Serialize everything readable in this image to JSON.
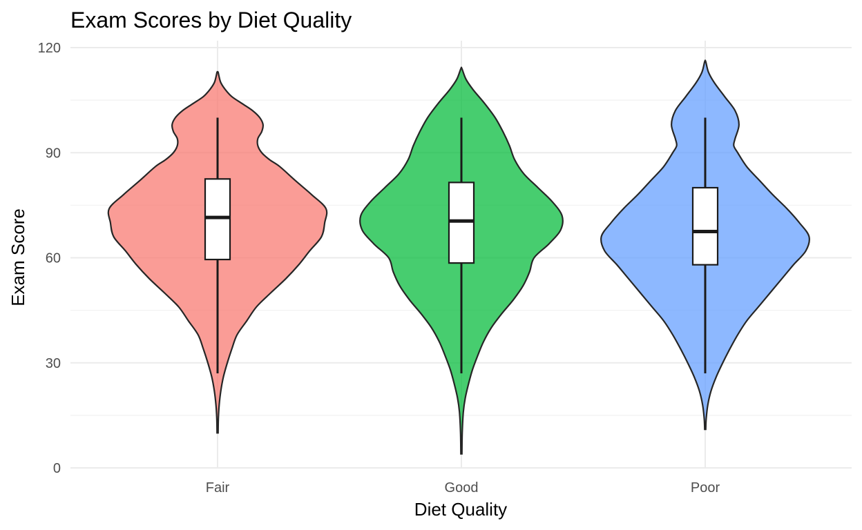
{
  "chart_data": {
    "type": "violin",
    "title": "Exam Scores by Diet Quality",
    "xlabel": "Diet Quality",
    "ylabel": "Exam Score",
    "ylim": [
      0,
      120
    ],
    "y_ticks": [
      0,
      30,
      60,
      90,
      120
    ],
    "categories": [
      "Fair",
      "Good",
      "Poor"
    ],
    "grid": true,
    "legend": "none",
    "series": [
      {
        "category": "Fair",
        "color": "#F8766D",
        "range": [
          10,
          113
        ],
        "box": {
          "whisker_low": 27,
          "q1": 59.5,
          "median": 71.5,
          "q3": 82.5,
          "whisker_high": 100
        },
        "density": [
          [
            10,
            0.8
          ],
          [
            14,
            1.2
          ],
          [
            18,
            2.5
          ],
          [
            22,
            5
          ],
          [
            26,
            9
          ],
          [
            30,
            15
          ],
          [
            34,
            22
          ],
          [
            38,
            30
          ],
          [
            42,
            45
          ],
          [
            46,
            60
          ],
          [
            50,
            82
          ],
          [
            54,
            105
          ],
          [
            58,
            125
          ],
          [
            62,
            142
          ],
          [
            66,
            160
          ],
          [
            70,
            165
          ],
          [
            74,
            167
          ],
          [
            78,
            145
          ],
          [
            82,
            120
          ],
          [
            86,
            96
          ],
          [
            88,
            80
          ],
          [
            90,
            68
          ],
          [
            92,
            62
          ],
          [
            94,
            62
          ],
          [
            96,
            68
          ],
          [
            98,
            70
          ],
          [
            100,
            65
          ],
          [
            102,
            54
          ],
          [
            104,
            38
          ],
          [
            106,
            22
          ],
          [
            108,
            12
          ],
          [
            110,
            5
          ],
          [
            112,
            2
          ],
          [
            113,
            0.8
          ]
        ]
      },
      {
        "category": "Good",
        "color": "#00BA38",
        "range": [
          4,
          114
        ],
        "box": {
          "whisker_low": 27,
          "q1": 58.5,
          "median": 70.5,
          "q3": 81.5,
          "whisker_high": 100
        },
        "density": [
          [
            4,
            0.8
          ],
          [
            10,
            1.3
          ],
          [
            16,
            3
          ],
          [
            20,
            6
          ],
          [
            24,
            11
          ],
          [
            28,
            17
          ],
          [
            32,
            25
          ],
          [
            36,
            34
          ],
          [
            40,
            46
          ],
          [
            44,
            62
          ],
          [
            48,
            80
          ],
          [
            52,
            95
          ],
          [
            56,
            105
          ],
          [
            60,
            112
          ],
          [
            64,
            135
          ],
          [
            68,
            153
          ],
          [
            72,
            155
          ],
          [
            76,
            140
          ],
          [
            80,
            118
          ],
          [
            84,
            96
          ],
          [
            88,
            82
          ],
          [
            92,
            74
          ],
          [
            96,
            64
          ],
          [
            100,
            52
          ],
          [
            104,
            36
          ],
          [
            108,
            18
          ],
          [
            111,
            7
          ],
          [
            114,
            0.8
          ]
        ]
      },
      {
        "category": "Poor",
        "color": "#619CFF",
        "range": [
          11,
          116
        ],
        "box": {
          "whisker_low": 27,
          "q1": 58,
          "median": 67.5,
          "q3": 80,
          "whisker_high": 100
        },
        "density": [
          [
            11,
            0.8
          ],
          [
            14,
            1.5
          ],
          [
            18,
            4
          ],
          [
            22,
            9
          ],
          [
            26,
            17
          ],
          [
            30,
            27
          ],
          [
            34,
            38
          ],
          [
            38,
            50
          ],
          [
            42,
            64
          ],
          [
            46,
            82
          ],
          [
            50,
            100
          ],
          [
            54,
            118
          ],
          [
            58,
            136
          ],
          [
            62,
            155
          ],
          [
            66,
            160
          ],
          [
            70,
            145
          ],
          [
            74,
            126
          ],
          [
            78,
            104
          ],
          [
            82,
            84
          ],
          [
            86,
            64
          ],
          [
            90,
            50
          ],
          [
            92,
            44
          ],
          [
            94,
            46
          ],
          [
            98,
            52
          ],
          [
            102,
            46
          ],
          [
            106,
            30
          ],
          [
            110,
            14
          ],
          [
            113,
            5
          ],
          [
            116,
            0.8
          ]
        ]
      }
    ]
  }
}
